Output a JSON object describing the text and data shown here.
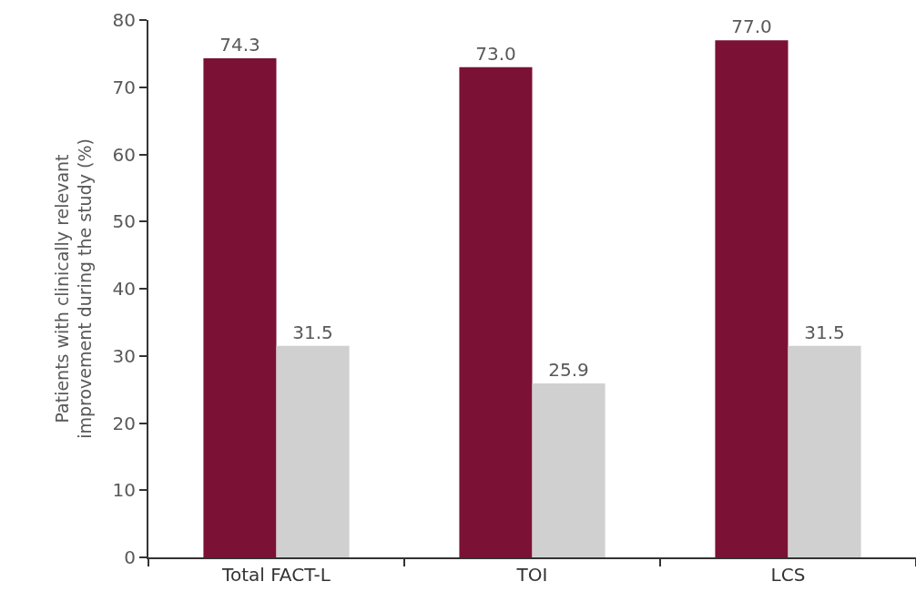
{
  "chart_data": {
    "type": "bar",
    "ylabel": "Patients with clinically relevant improvement during the study (%)",
    "categories": [
      "Total FACT-L",
      "TOI",
      "LCS"
    ],
    "series": [
      {
        "color": "#7b1135",
        "values": [
          74.3,
          73.0,
          77.0
        ],
        "value_labels": [
          "74.3",
          "73.0",
          "77.0"
        ]
      },
      {
        "color": "#d0d0d0",
        "values": [
          31.5,
          25.9,
          31.5
        ],
        "value_labels": [
          "31.5",
          "25.9",
          "31.5"
        ]
      }
    ],
    "ylim": [
      0,
      80
    ],
    "yticks": [
      0,
      10,
      20,
      30,
      40,
      50,
      60,
      70,
      80
    ],
    "grid": false
  }
}
